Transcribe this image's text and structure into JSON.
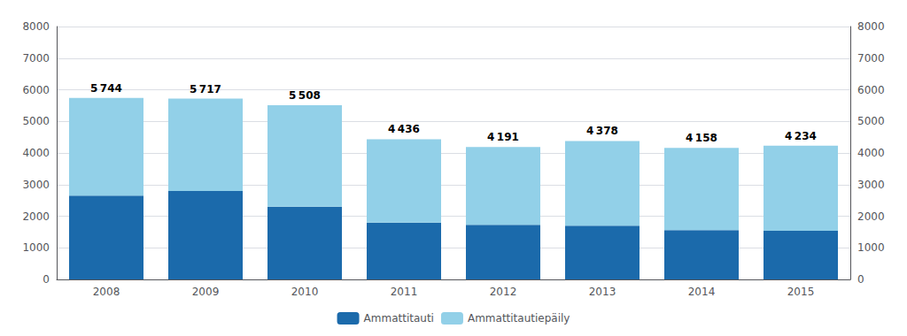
{
  "chart_data": {
    "type": "bar",
    "stacked": true,
    "grid": true,
    "legend": "bottom",
    "categories": [
      "2008",
      "2009",
      "2010",
      "2011",
      "2012",
      "2013",
      "2014",
      "2015"
    ],
    "series": [
      {
        "name": "Ammattitauti",
        "color": "#1B6AAB",
        "values": [
          2650,
          2800,
          2300,
          1800,
          1725,
          1700,
          1560,
          1540
        ]
      },
      {
        "name": "Ammattitautiepäily",
        "color": "#92D0E8",
        "values": [
          3094,
          2917,
          3208,
          2636,
          2466,
          2678,
          2598,
          2694
        ]
      }
    ],
    "annotations": [
      {
        "category": "2008",
        "value": 5744,
        "label": "5 744"
      },
      {
        "category": "2009",
        "value": 5717,
        "label": "5 717"
      },
      {
        "category": "2010",
        "value": 5508,
        "label": "5 508"
      },
      {
        "category": "2011",
        "value": 4436,
        "label": "4 436"
      },
      {
        "category": "2012",
        "value": 4191,
        "label": "4 191"
      },
      {
        "category": "2013",
        "value": 4378,
        "label": "4 378"
      },
      {
        "category": "2014",
        "value": 4158,
        "label": "4 158"
      },
      {
        "category": "2015",
        "value": 4234,
        "label": "4 234"
      }
    ],
    "ylim": [
      0,
      8000
    ],
    "yticks": [
      0,
      1000,
      2000,
      3000,
      4000,
      5000,
      6000,
      7000,
      8000
    ],
    "y2lim": [
      0,
      8000
    ],
    "y2ticks": [
      0,
      1000,
      2000,
      3000,
      4000,
      5000,
      6000,
      7000,
      8000
    ]
  }
}
